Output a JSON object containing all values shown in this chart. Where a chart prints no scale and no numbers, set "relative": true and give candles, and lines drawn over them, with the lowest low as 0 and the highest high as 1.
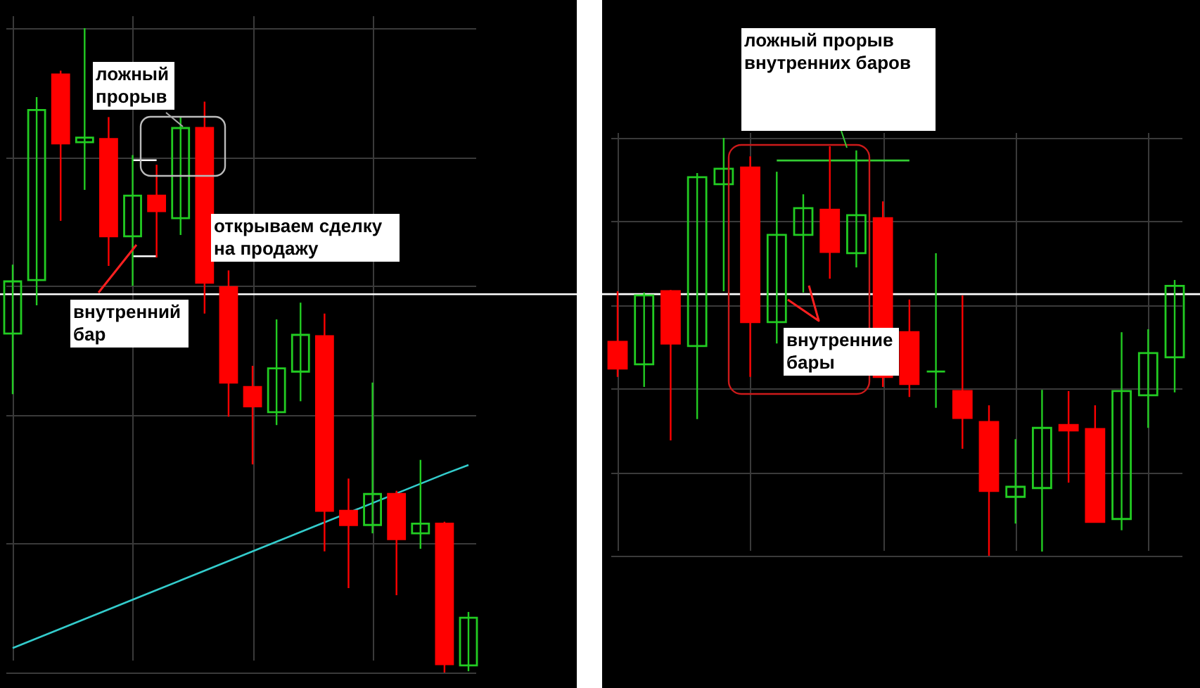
{
  "chart_data": [
    {
      "type": "candlestick",
      "relative": true,
      "grid": true,
      "categories": [
        null,
        null,
        null,
        null,
        null,
        null,
        null,
        null,
        null,
        null,
        null,
        null,
        null,
        null,
        null,
        null,
        null,
        null,
        null,
        null
      ],
      "ohlc": [
        [
          0.526,
          0.633,
          0.432,
          0.607
        ],
        [
          0.609,
          0.893,
          0.57,
          0.873
        ],
        [
          0.928,
          0.934,
          0.701,
          0.821
        ],
        [
          0.823,
          1.0,
          0.749,
          0.83
        ],
        [
          0.828,
          0.862,
          0.631,
          0.677
        ],
        [
          0.677,
          0.803,
          0.6,
          0.74
        ],
        [
          0.74,
          0.788,
          0.644,
          0.716
        ],
        [
          0.705,
          0.862,
          0.679,
          0.845
        ],
        [
          0.845,
          0.886,
          0.557,
          0.605
        ],
        [
          0.598,
          0.624,
          0.397,
          0.45
        ],
        [
          0.443,
          0.476,
          0.323,
          0.413
        ],
        [
          0.404,
          0.548,
          0.384,
          0.472
        ],
        [
          0.467,
          0.574,
          0.421,
          0.524
        ],
        [
          0.522,
          0.557,
          0.188,
          0.251
        ],
        [
          0.251,
          0.301,
          0.131,
          0.229
        ],
        [
          0.229,
          0.45,
          0.216,
          0.277
        ],
        [
          0.277,
          0.282,
          0.12,
          0.207
        ],
        [
          0.216,
          0.33,
          0.192,
          0.231
        ],
        [
          0.231,
          0.234,
          0.0,
          0.013
        ],
        [
          0.011,
          0.094,
          0.002,
          0.085
        ]
      ],
      "colors": [
        "#22cc22",
        "#22cc22",
        "#ff0000",
        "#22cc22",
        "#ff0000",
        "#22cc22",
        "#ff0000",
        "#22cc22",
        "#ff0000",
        "#ff0000",
        "#ff0000",
        "#22cc22",
        "#22cc22",
        "#ff0000",
        "#ff0000",
        "#22cc22",
        "#ff0000",
        "#22cc22",
        "#ff0000",
        "#22cc22"
      ],
      "ref_lines": [
        {
          "axis": "y",
          "value": 0.587,
          "color": "#ffffff"
        }
      ],
      "series": [
        {
          "type": "line",
          "color": "#33cccc",
          "values": [
            0.038,
            0.053,
            0.068,
            0.083,
            0.098,
            0.113,
            0.128,
            0.143,
            0.158,
            0.173,
            0.188,
            0.203,
            0.218,
            0.233,
            0.248,
            0.263,
            0.278,
            0.293,
            0.308,
            0.322
          ]
        },
        {
          "type": "line",
          "color": "#ffffff",
          "values": [
            null,
            null,
            null,
            null,
            null,
            0.795,
            0.795,
            null,
            null,
            null,
            null,
            null,
            null,
            null,
            null,
            null,
            null,
            null,
            null,
            null
          ]
        },
        {
          "type": "line",
          "color": "#ffffff",
          "values": [
            null,
            null,
            null,
            null,
            null,
            0.646,
            0.646,
            null,
            null,
            null,
            null,
            null,
            null,
            null,
            null,
            null,
            null,
            null,
            null,
            null
          ]
        }
      ],
      "annotations": [
        "ложный прорыв",
        "открываем сделку на продажу",
        "внутренний бар"
      ]
    },
    {
      "type": "candlestick",
      "relative": true,
      "grid": true,
      "categories": [
        null,
        null,
        null,
        null,
        null,
        null,
        null,
        null,
        null,
        null,
        null,
        null,
        null,
        null,
        null,
        null,
        null,
        null,
        null,
        null,
        null,
        null
      ],
      "ohlc": [
        [
          0.512,
          0.633,
          0.428,
          0.448
        ],
        [
          0.458,
          0.63,
          0.404,
          0.623
        ],
        [
          0.633,
          0.636,
          0.276,
          0.508
        ],
        [
          0.502,
          0.916,
          0.327,
          0.906
        ],
        [
          0.889,
          1.0,
          0.633,
          0.926
        ],
        [
          0.929,
          0.956,
          0.428,
          0.559
        ],
        [
          0.559,
          0.919,
          0.508,
          0.768
        ],
        [
          0.768,
          0.865,
          0.63,
          0.832
        ],
        [
          0.828,
          0.98,
          0.663,
          0.727
        ],
        [
          0.724,
          0.97,
          0.69,
          0.815
        ],
        [
          0.808,
          0.848,
          0.404,
          0.428
        ],
        [
          0.535,
          0.613,
          0.38,
          0.411
        ],
        [
          0.441,
          0.724,
          0.354,
          0.441
        ],
        [
          0.394,
          0.623,
          0.256,
          0.33
        ],
        [
          0.32,
          0.36,
          0.0,
          0.155
        ],
        [
          0.141,
          0.279,
          0.077,
          0.165
        ],
        [
          0.162,
          0.397,
          0.01,
          0.306
        ],
        [
          0.313,
          0.394,
          0.175,
          0.3
        ],
        [
          0.303,
          0.36,
          0.081,
          0.081
        ],
        [
          0.088,
          0.535,
          0.061,
          0.394
        ],
        [
          0.384,
          0.542,
          0.306,
          0.485
        ],
        [
          0.475,
          0.66,
          0.391,
          0.646
        ]
      ],
      "colors": [
        "#ff0000",
        "#22cc22",
        "#ff0000",
        "#22cc22",
        "#22cc22",
        "#ff0000",
        "#22cc22",
        "#22cc22",
        "#ff0000",
        "#22cc22",
        "#ff0000",
        "#ff0000",
        "#22cc22",
        "#ff0000",
        "#ff0000",
        "#22cc22",
        "#22cc22",
        "#ff0000",
        "#ff0000",
        "#22cc22",
        "#22cc22",
        "#22cc22"
      ],
      "ref_lines": [
        {
          "axis": "y",
          "value": 0.626,
          "color": "#ffffff"
        }
      ],
      "series": [
        {
          "type": "line",
          "color": "#33cc33",
          "values": [
            null,
            null,
            null,
            null,
            null,
            null,
            0.946,
            0.946,
            0.946,
            0.946,
            0.946,
            0.946,
            null,
            null,
            null,
            null,
            null,
            null,
            null,
            null,
            null,
            null
          ]
        }
      ],
      "annotations": [
        "ложный прорыв внутренних баров",
        "внутренние бары"
      ]
    }
  ]
}
